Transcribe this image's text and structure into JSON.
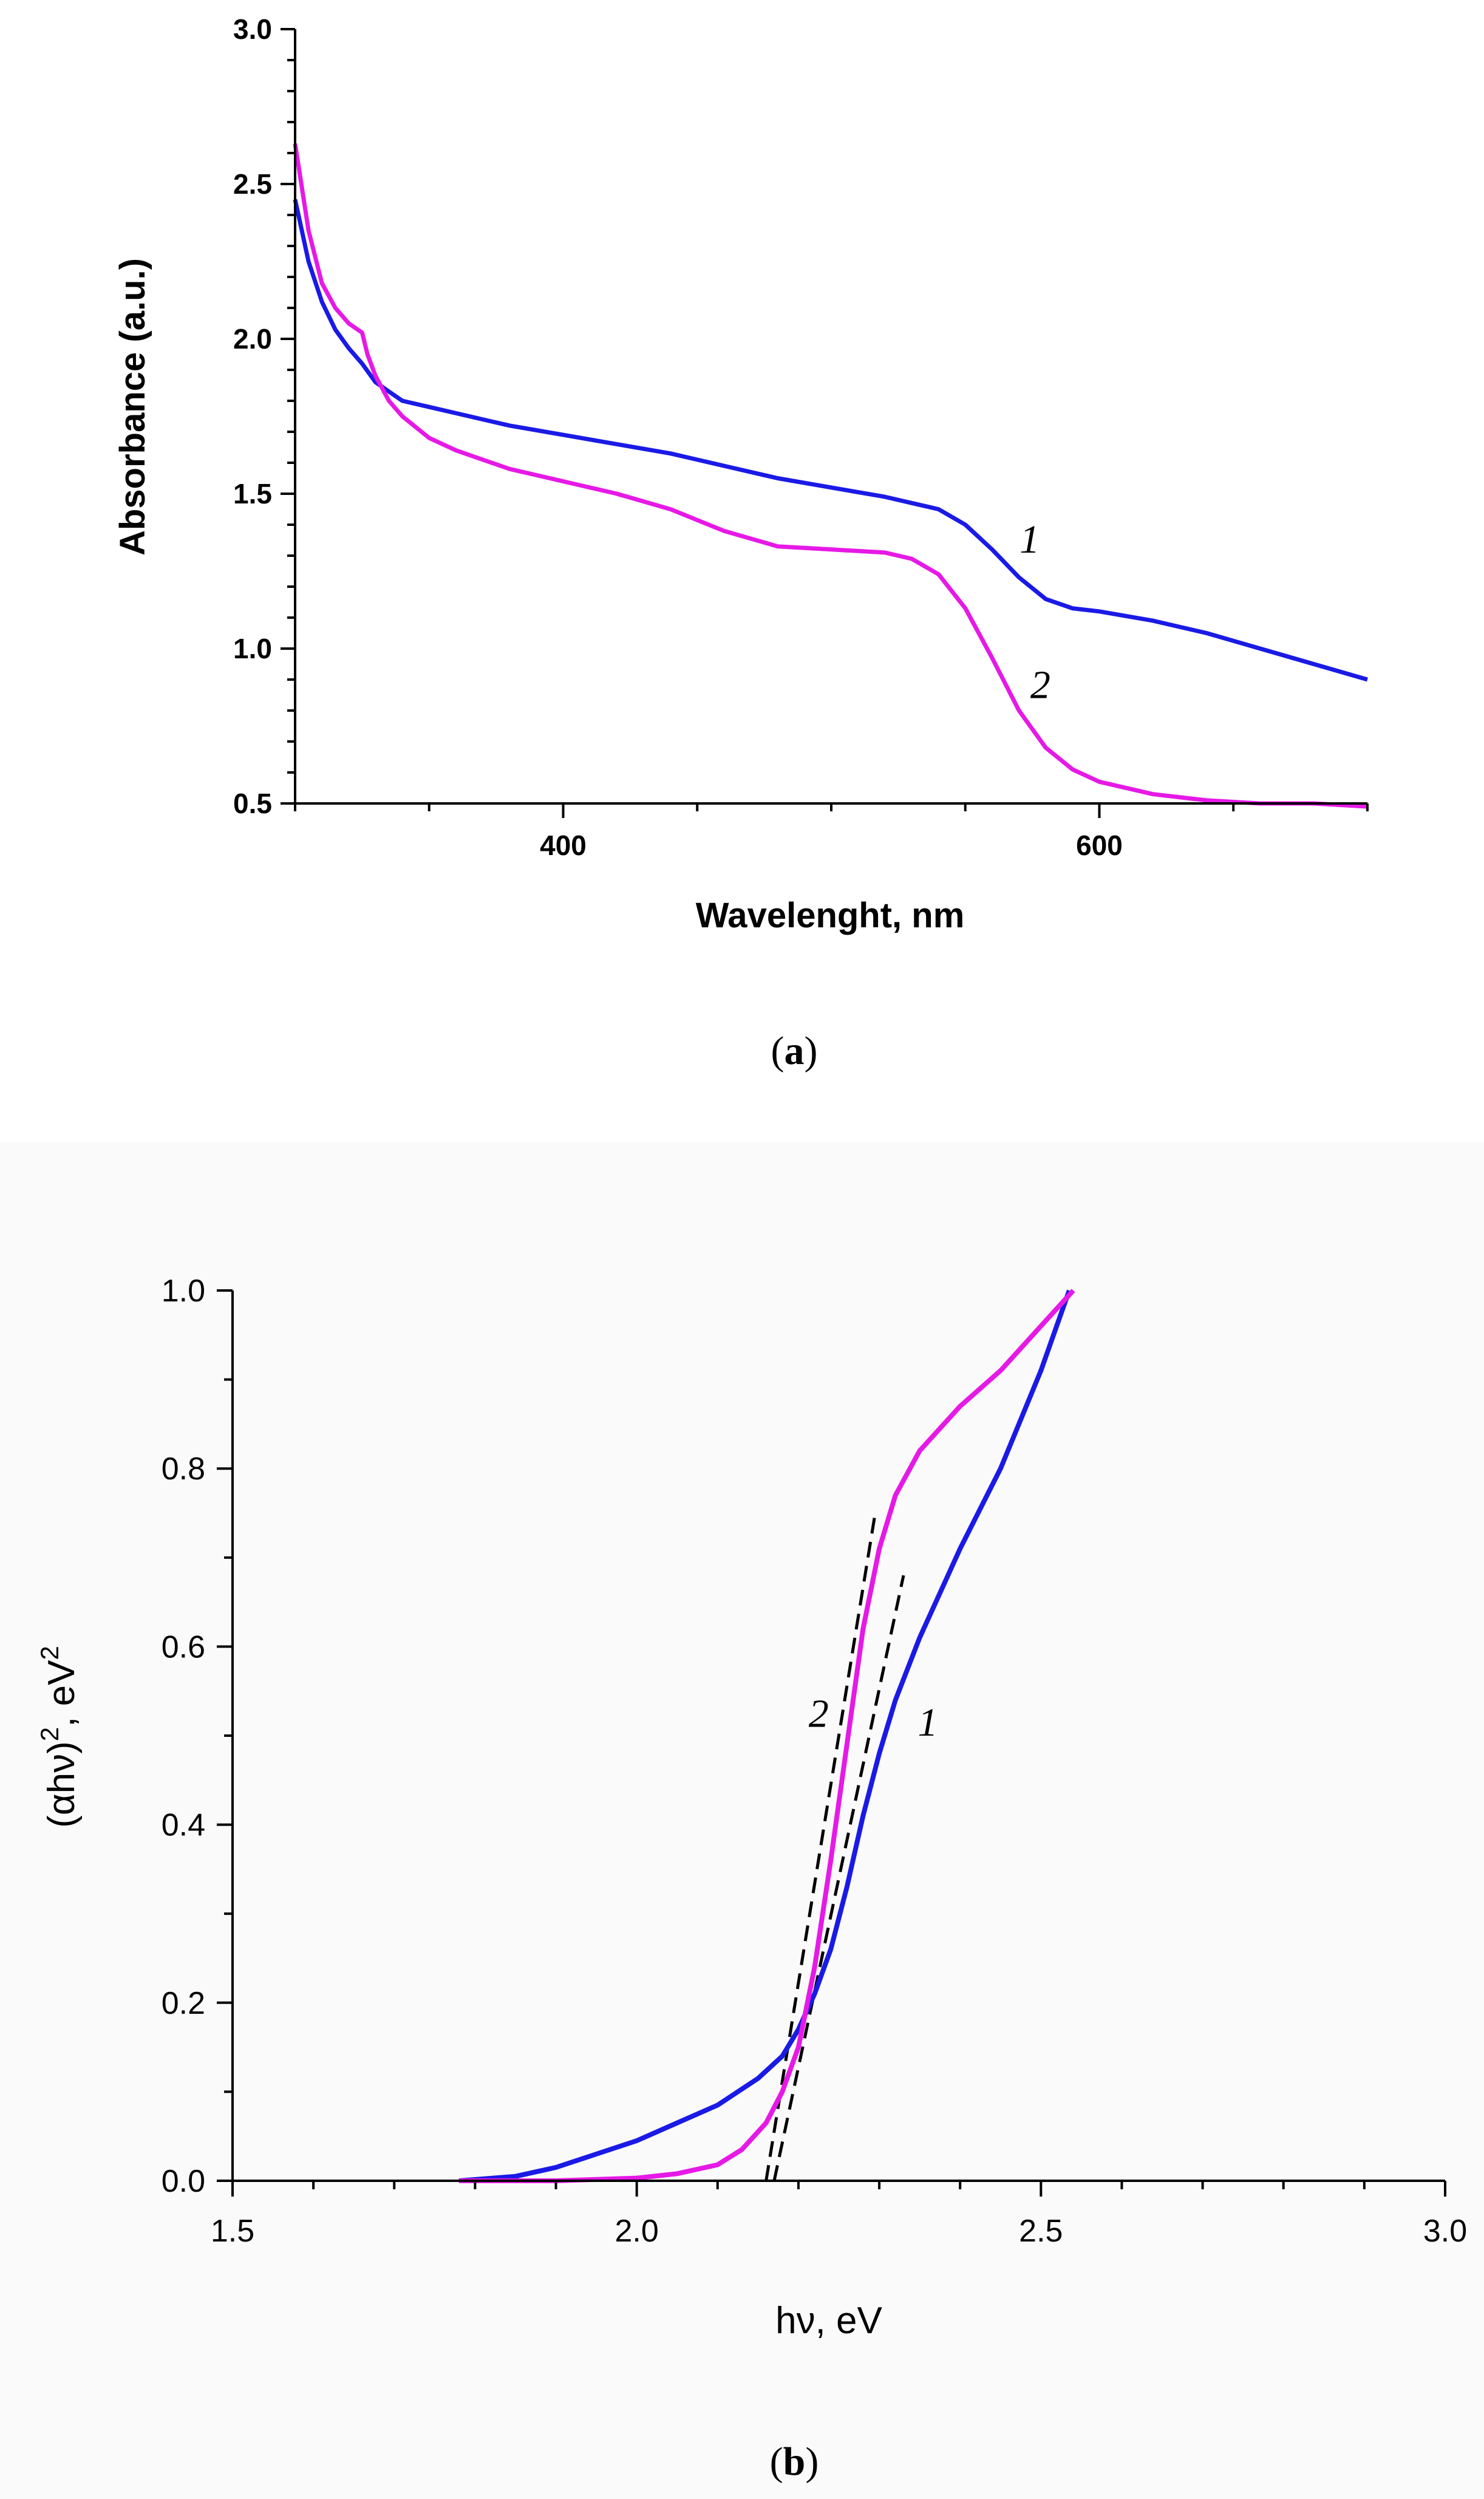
{
  "chart_data": [
    {
      "type": "line",
      "panel": "a",
      "caption": {
        "open": "(",
        "letter": "a",
        "close": ")"
      },
      "xlabel": "Wavelenght, nm",
      "ylabel": "Absorbance (a.u.)",
      "xlim": [
        300,
        700
      ],
      "ylim": [
        0.5,
        3.0
      ],
      "xticks": [
        400,
        600
      ],
      "yticks": [
        0.5,
        1.0,
        1.5,
        2.0,
        2.5,
        3.0
      ],
      "ytick_labels": [
        "0.5",
        "1.0",
        "1.5",
        "2.0",
        "2.5",
        "3.0"
      ],
      "series": [
        {
          "name": "1",
          "color": "#1a1ae6",
          "x": [
            300,
            305,
            310,
            315,
            320,
            325,
            330,
            335,
            340,
            350,
            360,
            370,
            380,
            400,
            420,
            440,
            460,
            480,
            500,
            520,
            540,
            550,
            560,
            570,
            580,
            590,
            600,
            620,
            640,
            660,
            680,
            700
          ],
          "y": [
            2.45,
            2.25,
            2.12,
            2.03,
            1.97,
            1.92,
            1.86,
            1.83,
            1.8,
            1.78,
            1.76,
            1.74,
            1.72,
            1.69,
            1.66,
            1.63,
            1.59,
            1.55,
            1.52,
            1.49,
            1.45,
            1.4,
            1.32,
            1.23,
            1.16,
            1.13,
            1.12,
            1.09,
            1.05,
            1.0,
            0.95,
            0.9
          ]
        },
        {
          "name": "2",
          "color": "#e619e6",
          "x": [
            300,
            305,
            310,
            315,
            320,
            325,
            327,
            330,
            335,
            340,
            350,
            360,
            370,
            380,
            400,
            420,
            440,
            460,
            480,
            500,
            520,
            530,
            540,
            550,
            560,
            570,
            580,
            590,
            600,
            620,
            640,
            660,
            680,
            700
          ],
          "y": [
            2.63,
            2.35,
            2.18,
            2.1,
            2.05,
            2.02,
            1.95,
            1.88,
            1.8,
            1.75,
            1.68,
            1.64,
            1.61,
            1.58,
            1.54,
            1.5,
            1.45,
            1.38,
            1.33,
            1.32,
            1.31,
            1.29,
            1.24,
            1.13,
            0.97,
            0.8,
            0.68,
            0.61,
            0.57,
            0.53,
            0.51,
            0.5,
            0.5,
            0.49
          ]
        }
      ],
      "annotations": [
        {
          "text": "1",
          "x": 574,
          "y": 1.31
        },
        {
          "text": "2",
          "x": 578,
          "y": 0.84
        }
      ]
    },
    {
      "type": "line",
      "panel": "b",
      "caption": {
        "open": "(",
        "letter": "b",
        "close": ")"
      },
      "xlabel": "hν, eV",
      "ylabel": "(αhν)², eV²",
      "ylabel_parts": {
        "base": "(αhν)",
        "sup1": "2",
        "mid": ", eV",
        "sup2": "2"
      },
      "xlim": [
        1.5,
        3.0
      ],
      "ylim": [
        0.0,
        1.0
      ],
      "xticks": [
        1.5,
        2.0,
        2.5,
        3.0
      ],
      "xtick_labels": [
        "1.5",
        "2.0",
        "2.5",
        "3.0"
      ],
      "yticks": [
        0.0,
        0.2,
        0.4,
        0.6,
        0.8,
        1.0
      ],
      "ytick_labels": [
        "0.0",
        "0.2",
        "0.4",
        "0.6",
        "0.8",
        "1.0"
      ],
      "series": [
        {
          "name": "1",
          "color": "#1a1ae6",
          "x": [
            1.78,
            1.85,
            1.9,
            1.95,
            2.0,
            2.05,
            2.1,
            2.15,
            2.18,
            2.2,
            2.22,
            2.24,
            2.26,
            2.28,
            2.3,
            2.32,
            2.35,
            2.4,
            2.45,
            2.5,
            2.535
          ],
          "y": [
            0.0,
            0.005,
            0.015,
            0.03,
            0.045,
            0.065,
            0.085,
            0.115,
            0.14,
            0.17,
            0.21,
            0.26,
            0.33,
            0.41,
            0.48,
            0.54,
            0.61,
            0.71,
            0.8,
            0.91,
            1.0
          ]
        },
        {
          "name": "2",
          "color": "#e619e6",
          "x": [
            1.78,
            1.9,
            2.0,
            2.05,
            2.1,
            2.13,
            2.16,
            2.18,
            2.2,
            2.22,
            2.24,
            2.26,
            2.28,
            2.3,
            2.32,
            2.35,
            2.4,
            2.45,
            2.5,
            2.54
          ],
          "y": [
            0.0,
            0.0,
            0.003,
            0.008,
            0.018,
            0.035,
            0.065,
            0.1,
            0.15,
            0.24,
            0.36,
            0.49,
            0.62,
            0.71,
            0.77,
            0.82,
            0.87,
            0.91,
            0.96,
            1.0
          ]
        }
      ],
      "tangent_lines": [
        {
          "curve": "1",
          "x": [
            2.17,
            2.33
          ],
          "y": [
            0.0,
            0.68
          ]
        },
        {
          "curve": "2",
          "x": [
            2.16,
            2.295
          ],
          "y": [
            0.0,
            0.75
          ]
        }
      ],
      "annotations": [
        {
          "text": "1",
          "x": 2.36,
          "y": 0.5
        },
        {
          "text": "2",
          "x": 2.225,
          "y": 0.51
        }
      ]
    }
  ]
}
